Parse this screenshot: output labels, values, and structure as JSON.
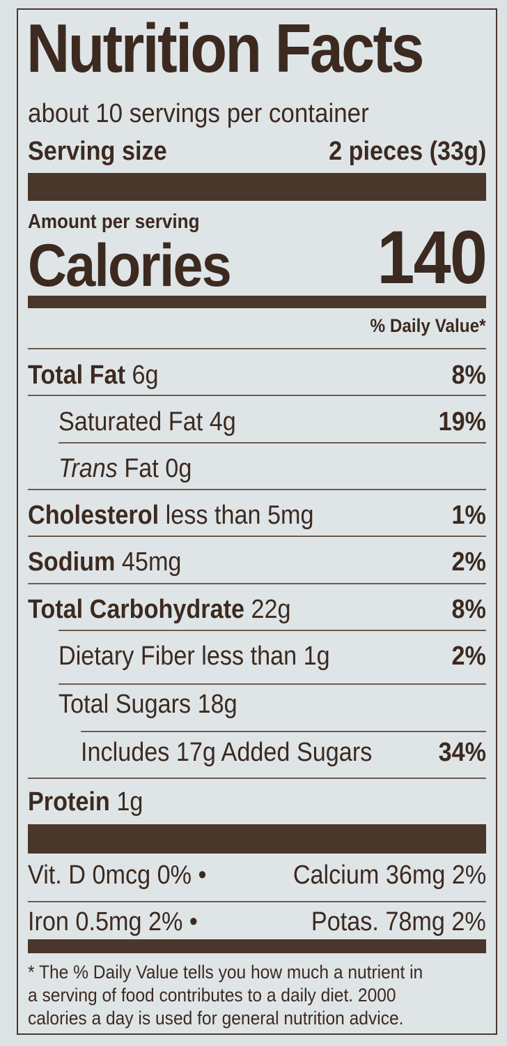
{
  "title": "Nutrition Facts",
  "servings_per_container": "about 10 servings per container",
  "serving_size_label": "Serving size",
  "serving_size_value": "2 pieces (33g)",
  "amount_per_serving": "Amount per serving",
  "calories_label": "Calories",
  "calories_value": "140",
  "daily_value_header": "% Daily Value*",
  "nutrients": [
    {
      "bold": "Total Fat",
      "text": " 6g",
      "pct": "8%"
    },
    {
      "text": "Saturated Fat 4g",
      "pct": "19%"
    },
    {
      "italic": "Trans",
      "text": " Fat 0g",
      "pct": ""
    },
    {
      "bold": "Cholesterol",
      "text": " less than 5mg",
      "pct": "1%"
    },
    {
      "bold": "Sodium",
      "text": " 45mg",
      "pct": "2%"
    },
    {
      "bold": "Total Carbohydrate",
      "text": " 22g",
      "pct": "8%"
    },
    {
      "text": "Dietary Fiber less than 1g",
      "pct": "2%"
    },
    {
      "text": "Total Sugars 18g",
      "pct": ""
    },
    {
      "text": "Includes 17g Added Sugars",
      "pct": "34%"
    },
    {
      "bold": "Protein",
      "text": " 1g",
      "pct": ""
    }
  ],
  "vitamins": [
    {
      "left": "Vit. D 0mcg 0% •",
      "right": "Calcium 36mg 2%"
    },
    {
      "left": "Iron 0.5mg 2% •",
      "right": "Potas.   78mg 2%"
    }
  ],
  "footnote": [
    "* The % Daily Value tells you how much a nutrient in",
    "a serving of food contributes to a daily diet. 2000",
    "calories a day is used for general nutrition advice."
  ]
}
